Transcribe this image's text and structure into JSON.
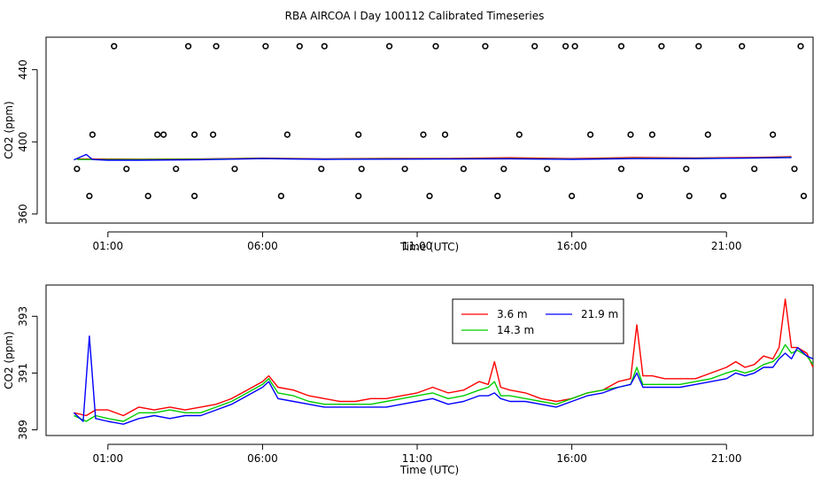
{
  "page_title": "RBA AIRCOA l  Day 100112  Calibrated Timeseries",
  "colors": {
    "red": "#ff0000",
    "green": "#00cc00",
    "blue": "#0000ff",
    "axis": "#000000"
  },
  "chart_data": [
    {
      "type": "line",
      "id": "top",
      "xlabel": "Time (UTC)",
      "ylabel": "CO2 (ppm)",
      "xlim": [
        -1,
        23.8
      ],
      "ylim": [
        355,
        458
      ],
      "xticks": [
        1,
        6,
        11,
        16,
        21
      ],
      "xtick_labels": [
        "01:00",
        "06:00",
        "11:00",
        "16:00",
        "21:00"
      ],
      "yticks": [
        360,
        400,
        440
      ],
      "ytick_labels": [
        "360",
        "400",
        "440"
      ],
      "series": [
        {
          "color": "#ff0000",
          "x": [
            0,
            2,
            4,
            6,
            8,
            10,
            12,
            14,
            16,
            18,
            20,
            22,
            23.1
          ],
          "y": [
            390.5,
            390.4,
            390.5,
            391.0,
            390.6,
            390.8,
            390.8,
            391.2,
            390.7,
            391.3,
            391.1,
            391.4,
            391.8
          ]
        },
        {
          "color": "#00cc00",
          "x": [
            0,
            2,
            4,
            6,
            8,
            10,
            12,
            14,
            16,
            18,
            20,
            22,
            23.1
          ],
          "y": [
            390.2,
            390.2,
            390.3,
            390.8,
            390.4,
            390.6,
            390.6,
            390.7,
            390.4,
            390.9,
            390.8,
            391.1,
            391.5
          ]
        },
        {
          "color": "#0000ff",
          "x": [
            -0.1,
            0.3,
            0.5,
            1,
            2,
            4,
            6,
            8,
            10,
            12,
            14,
            16,
            18,
            20,
            22,
            23.1
          ],
          "y": [
            390.0,
            393.0,
            390.2,
            389.8,
            389.8,
            390.1,
            390.7,
            390.3,
            390.4,
            390.5,
            390.6,
            390.3,
            390.7,
            390.7,
            391.1,
            391.3
          ]
        }
      ],
      "points": {
        "x": [
          0.4,
          2.3,
          3.8,
          6.6,
          9.1,
          11.4,
          13.6,
          16.0,
          18.2,
          19.8,
          20.9,
          23.5,
          0.0,
          1.6,
          3.2,
          5.1,
          7.9,
          10.6,
          12.5,
          15.2,
          17.6,
          19.7,
          21.9,
          23.2,
          0.5,
          2.6,
          3.8,
          6.8,
          9.1,
          11.9,
          14.3,
          16.6,
          18.6,
          20.4,
          22.5,
          1.2,
          3.6,
          4.5,
          6.1,
          8.0,
          10.1,
          11.6,
          13.2,
          14.8,
          16.1,
          17.6,
          18.9,
          20.1,
          21.5,
          23.4,
          2.8,
          4.4,
          7.2,
          9.2,
          11.2,
          13.8,
          15.8,
          17.9
        ],
        "y": [
          370,
          370,
          370,
          370,
          370,
          370,
          370,
          370,
          370,
          370,
          370,
          370,
          385,
          385,
          385,
          385,
          385,
          385,
          385,
          385,
          385,
          385,
          385,
          385,
          404,
          404,
          404,
          404,
          404,
          404,
          404,
          404,
          404,
          404,
          404,
          453,
          453,
          453,
          453,
          453,
          453,
          453,
          453,
          453,
          453,
          453,
          453,
          453,
          453,
          453,
          404,
          404,
          453,
          385,
          404,
          385,
          453,
          404
        ]
      }
    },
    {
      "type": "line",
      "id": "bottom",
      "xlabel": "Time (UTC)",
      "ylabel": "CO2 (ppm)",
      "xlim": [
        -1,
        23.8
      ],
      "ylim": [
        388.8,
        394.1
      ],
      "xticks": [
        1,
        6,
        11,
        16,
        21
      ],
      "xtick_labels": [
        "01:00",
        "06:00",
        "11:00",
        "16:00",
        "21:00"
      ],
      "yticks": [
        389,
        391,
        393
      ],
      "ytick_labels": [
        "389",
        "391",
        "393"
      ],
      "legend": {
        "position": "top-center",
        "entries": [
          {
            "label": "3.6 m",
            "color": "#ff0000"
          },
          {
            "label": "14.3 m",
            "color": "#00cc00"
          },
          {
            "label": "21.9 m",
            "color": "#0000ff"
          }
        ]
      },
      "series": [
        {
          "color": "#ff0000",
          "x": [
            -0.1,
            0.3,
            0.6,
            1.0,
            1.5,
            2.0,
            2.5,
            3.0,
            3.5,
            4.0,
            4.5,
            5.0,
            5.5,
            6.0,
            6.2,
            6.5,
            7.0,
            7.5,
            8.0,
            8.5,
            9.0,
            9.5,
            10.0,
            10.5,
            11.0,
            11.5,
            12.0,
            12.5,
            13.0,
            13.3,
            13.5,
            13.7,
            14.0,
            14.5,
            15.0,
            15.5,
            16.0,
            16.5,
            17.0,
            17.5,
            17.9,
            18.1,
            18.3,
            18.6,
            19.0,
            19.5,
            20.0,
            20.5,
            21.0,
            21.3,
            21.6,
            21.9,
            22.2,
            22.5,
            22.7,
            22.9,
            23.1,
            23.3,
            23.6,
            23.8
          ],
          "y": [
            389.6,
            389.5,
            389.7,
            389.7,
            389.5,
            389.8,
            389.7,
            389.8,
            389.7,
            389.8,
            389.9,
            390.1,
            390.4,
            390.7,
            390.9,
            390.5,
            390.4,
            390.2,
            390.1,
            390.0,
            390.0,
            390.1,
            390.1,
            390.2,
            390.3,
            390.5,
            390.3,
            390.4,
            390.7,
            390.6,
            391.4,
            390.5,
            390.4,
            390.3,
            390.1,
            390.0,
            390.1,
            390.3,
            390.4,
            390.7,
            390.8,
            392.7,
            390.9,
            390.9,
            390.8,
            390.8,
            390.8,
            391.0,
            391.2,
            391.4,
            391.2,
            391.3,
            391.6,
            391.5,
            391.9,
            393.6,
            391.9,
            391.9,
            391.7,
            391.2
          ]
        },
        {
          "color": "#00cc00",
          "x": [
            -0.1,
            0.3,
            0.6,
            1.0,
            1.5,
            2.0,
            2.5,
            3.0,
            3.5,
            4.0,
            4.5,
            5.0,
            5.5,
            6.0,
            6.2,
            6.5,
            7.0,
            7.5,
            8.0,
            8.5,
            9.0,
            9.5,
            10.0,
            10.5,
            11.0,
            11.5,
            12.0,
            12.5,
            13.0,
            13.3,
            13.5,
            13.7,
            14.0,
            14.5,
            15.0,
            15.5,
            16.0,
            16.5,
            17.0,
            17.5,
            17.9,
            18.1,
            18.3,
            18.6,
            19.0,
            19.5,
            20.0,
            20.5,
            21.0,
            21.3,
            21.6,
            21.9,
            22.2,
            22.5,
            22.7,
            22.9,
            23.1,
            23.3,
            23.6,
            23.8
          ],
          "y": [
            389.5,
            389.3,
            389.5,
            389.4,
            389.3,
            389.6,
            389.6,
            389.7,
            389.6,
            389.6,
            389.8,
            390.0,
            390.3,
            390.6,
            390.8,
            390.3,
            390.2,
            390.0,
            389.9,
            389.9,
            389.9,
            389.9,
            390.0,
            390.1,
            390.2,
            390.3,
            390.1,
            390.2,
            390.4,
            390.5,
            390.7,
            390.2,
            390.2,
            390.1,
            390.0,
            389.9,
            390.1,
            390.3,
            390.4,
            390.5,
            390.6,
            391.2,
            390.6,
            390.6,
            390.6,
            390.6,
            390.7,
            390.8,
            391.0,
            391.1,
            391.0,
            391.1,
            391.3,
            391.4,
            391.6,
            392.0,
            391.7,
            391.8,
            391.6,
            391.3
          ]
        },
        {
          "color": "#0000ff",
          "x": [
            -0.1,
            0.2,
            0.4,
            0.6,
            1.0,
            1.5,
            2.0,
            2.5,
            3.0,
            3.5,
            4.0,
            4.5,
            5.0,
            5.5,
            6.0,
            6.2,
            6.5,
            7.0,
            7.5,
            8.0,
            8.5,
            9.0,
            9.5,
            10.0,
            10.5,
            11.0,
            11.5,
            12.0,
            12.5,
            13.0,
            13.3,
            13.5,
            13.7,
            14.0,
            14.5,
            15.0,
            15.5,
            16.0,
            16.5,
            17.0,
            17.5,
            17.9,
            18.1,
            18.3,
            18.6,
            19.0,
            19.5,
            20.0,
            20.5,
            21.0,
            21.3,
            21.6,
            21.9,
            22.2,
            22.5,
            22.7,
            22.9,
            23.1,
            23.3,
            23.6,
            23.8
          ],
          "y": [
            389.6,
            389.3,
            392.3,
            389.4,
            389.3,
            389.2,
            389.4,
            389.5,
            389.4,
            389.5,
            389.5,
            389.7,
            389.9,
            390.2,
            390.5,
            390.7,
            390.1,
            390.0,
            389.9,
            389.8,
            389.8,
            389.8,
            389.8,
            389.8,
            389.9,
            390.0,
            390.1,
            389.9,
            390.0,
            390.2,
            390.2,
            390.3,
            390.1,
            390.0,
            390.0,
            389.9,
            389.8,
            390.0,
            390.2,
            390.3,
            390.5,
            390.6,
            391.0,
            390.5,
            390.5,
            390.5,
            390.5,
            390.6,
            390.7,
            390.8,
            391.0,
            390.9,
            391.0,
            391.2,
            391.2,
            391.5,
            391.7,
            391.5,
            391.9,
            391.6,
            391.5
          ]
        }
      ]
    }
  ]
}
